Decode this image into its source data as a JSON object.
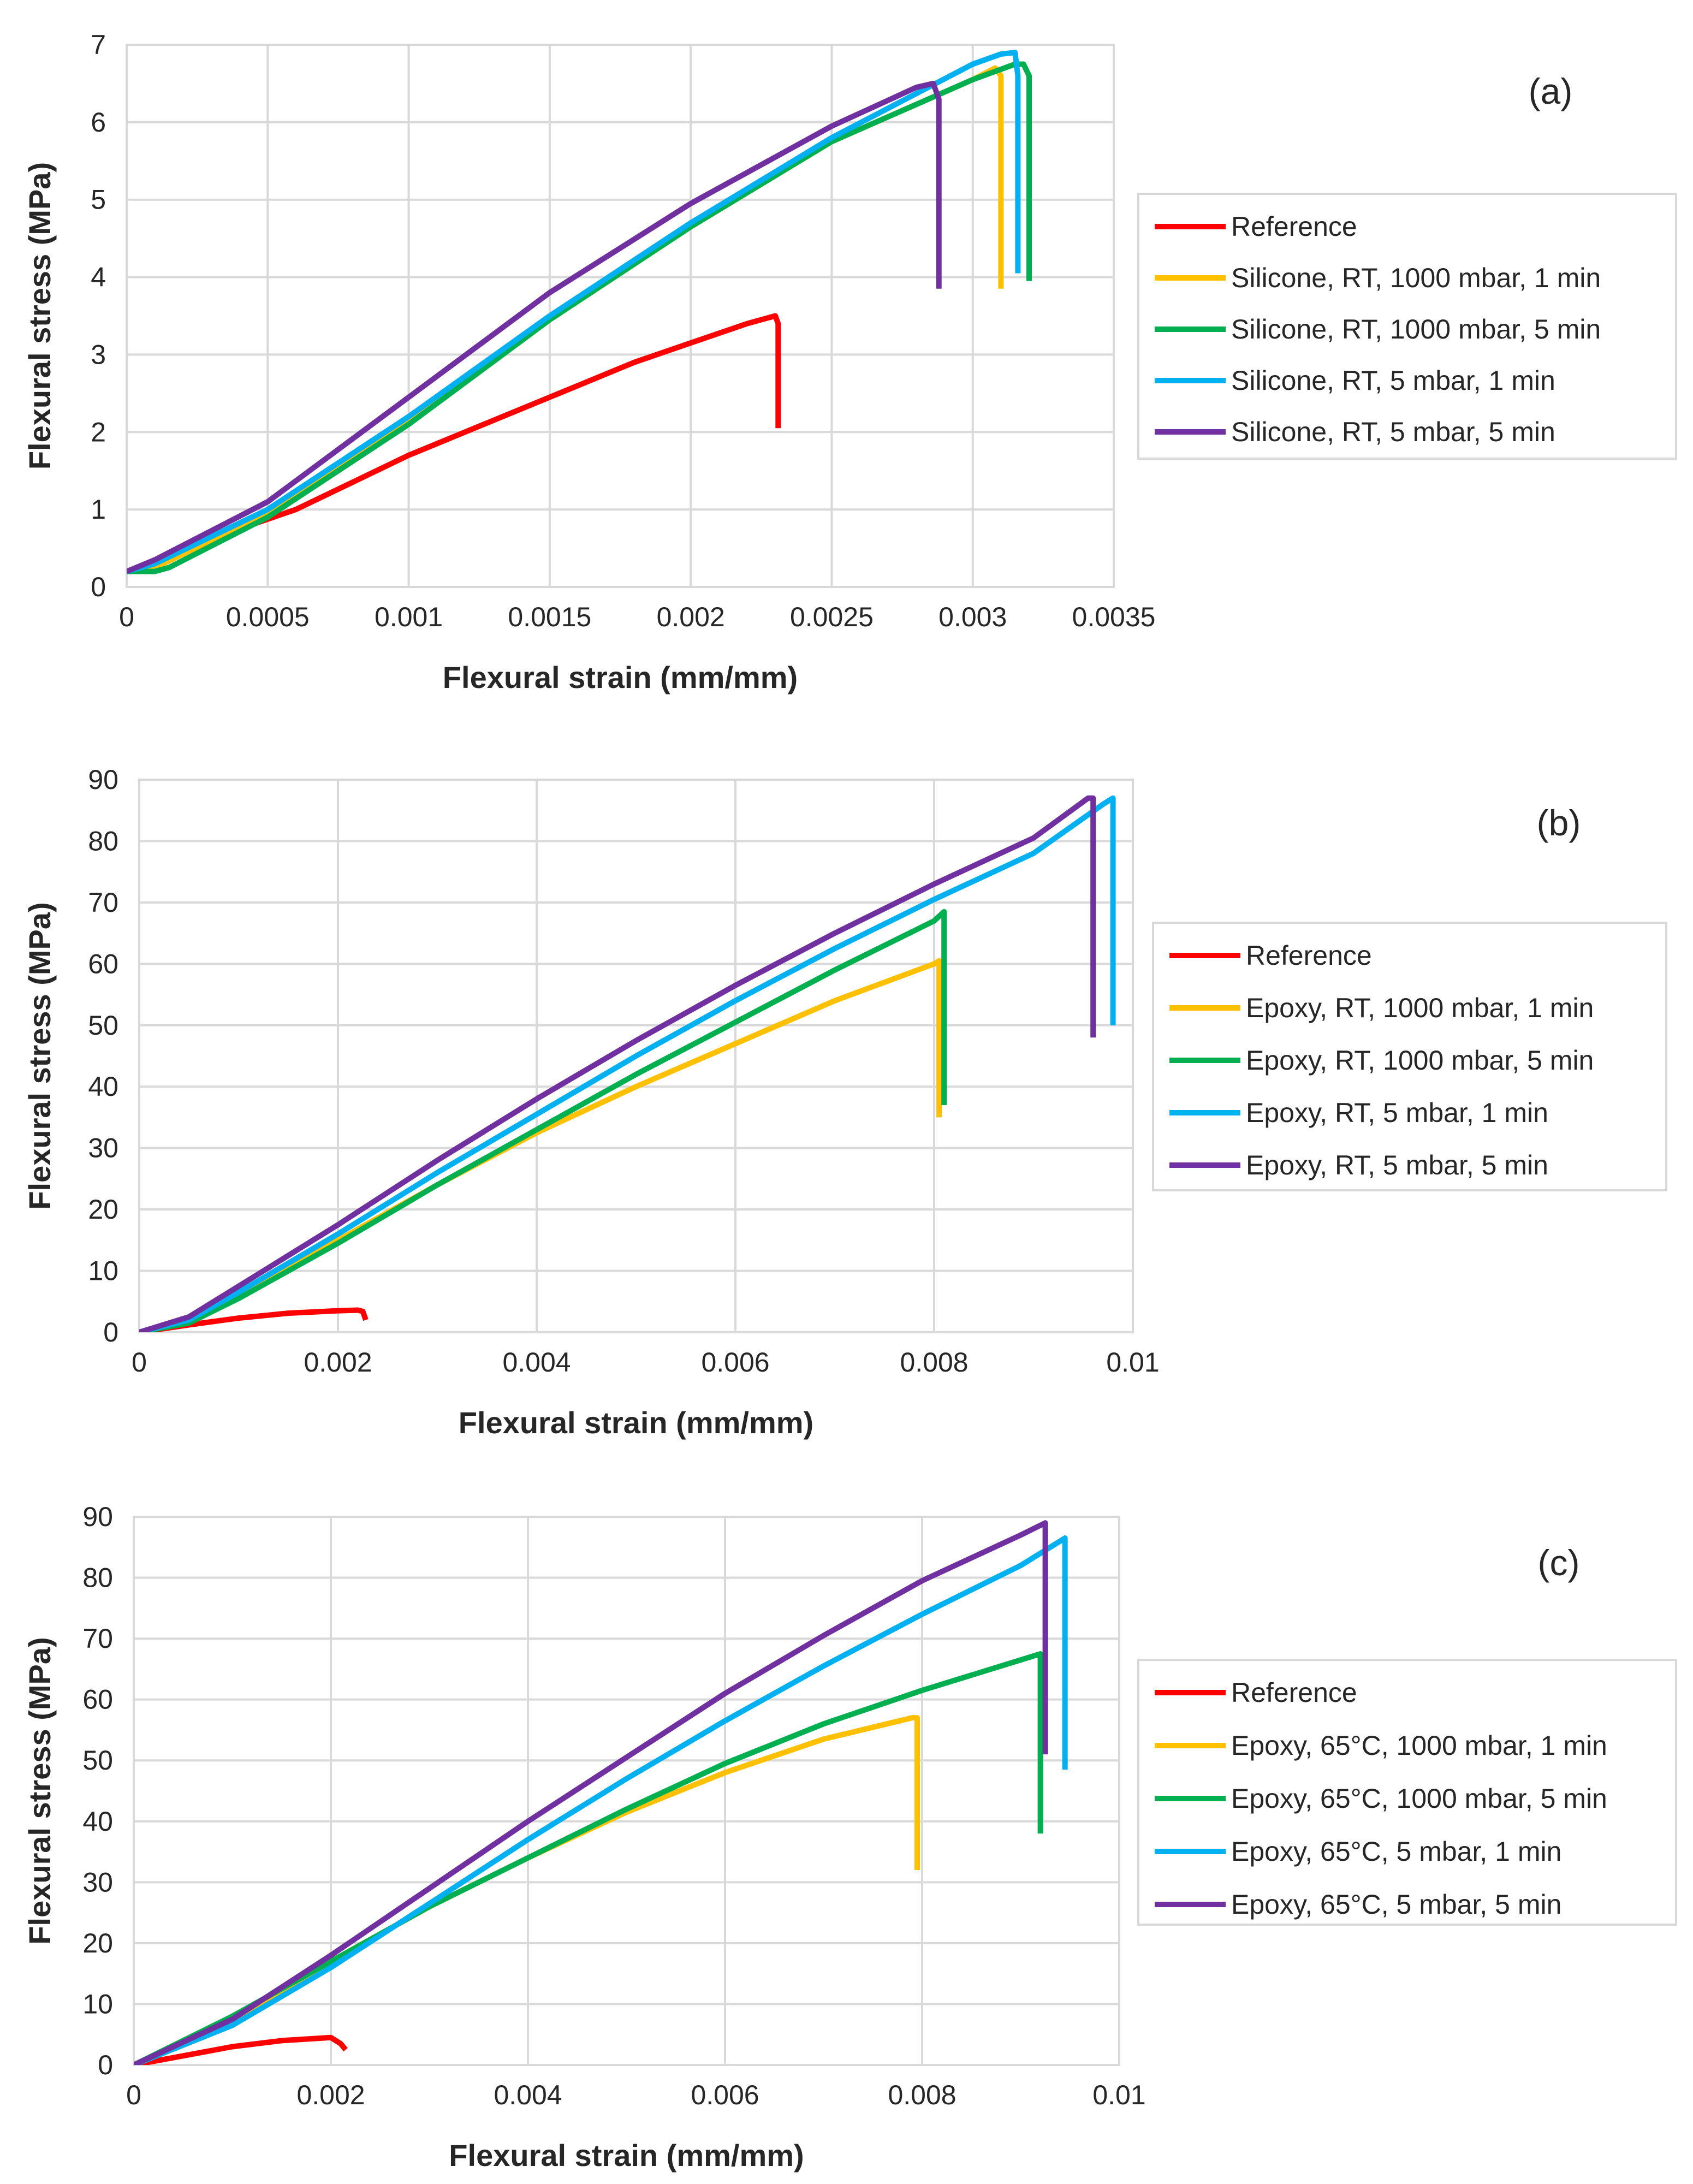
{
  "chart_data": [
    {
      "type": "line",
      "panel_label": "(a)",
      "xlabel": "Flexural strain (mm/mm)",
      "ylabel": "Flexural stress (MPa)",
      "xlim": [
        0,
        0.0035
      ],
      "ylim": [
        0,
        7
      ],
      "grid": true,
      "legend_position": "right",
      "xticks": [
        "0",
        "0.0005",
        "0.001",
        "0.0015",
        "0.002",
        "0.0025",
        "0.003",
        "0.0035"
      ],
      "yticks": [
        "0",
        "1",
        "2",
        "3",
        "4",
        "5",
        "6",
        "7"
      ],
      "series": [
        {
          "name": "Reference",
          "color": "#ff0000",
          "x": [
            0,
            0.0001,
            0.0002,
            0.0004,
            0.0006,
            0.0008,
            0.001,
            0.0012,
            0.0014,
            0.0016,
            0.0018,
            0.002,
            0.0022,
            0.0023,
            0.00231,
            0.00231
          ],
          "y": [
            0.2,
            0.3,
            0.45,
            0.75,
            1.0,
            1.35,
            1.7,
            2.0,
            2.3,
            2.6,
            2.9,
            3.15,
            3.4,
            3.5,
            3.4,
            2.05
          ]
        },
        {
          "name": "Silicone, RT, 1000 mbar, 1 min",
          "color": "#ffc000",
          "x": [
            0,
            0.0001,
            0.0005,
            0.001,
            0.0015,
            0.002,
            0.0025,
            0.003,
            0.00308,
            0.0031,
            0.0031
          ],
          "y": [
            0.2,
            0.25,
            0.95,
            2.15,
            3.45,
            4.65,
            5.75,
            6.55,
            6.7,
            6.6,
            3.85
          ]
        },
        {
          "name": "Silicone, RT, 1000 mbar, 5 min",
          "color": "#00b050",
          "x": [
            0,
            0.0001,
            0.00015,
            0.0005,
            0.001,
            0.0015,
            0.002,
            0.0025,
            0.003,
            0.00315,
            0.00318,
            0.0032,
            0.0032
          ],
          "y": [
            0.2,
            0.2,
            0.25,
            0.9,
            2.1,
            3.45,
            4.65,
            5.75,
            6.55,
            6.75,
            6.75,
            6.6,
            3.95
          ]
        },
        {
          "name": "Silicone, RT, 5 mbar, 1 min",
          "color": "#00b0f0",
          "x": [
            0,
            0.0001,
            0.0005,
            0.001,
            0.0015,
            0.002,
            0.0025,
            0.003,
            0.0031,
            0.00315,
            0.00316,
            0.00316
          ],
          "y": [
            0.2,
            0.3,
            1.0,
            2.2,
            3.5,
            4.7,
            5.8,
            6.75,
            6.88,
            6.9,
            6.6,
            4.05
          ]
        },
        {
          "name": "Silicone, RT, 5 mbar, 5 min",
          "color": "#7030a0",
          "x": [
            0,
            0.0001,
            0.0005,
            0.001,
            0.0015,
            0.002,
            0.0025,
            0.0028,
            0.00286,
            0.00288,
            0.00288
          ],
          "y": [
            0.2,
            0.35,
            1.1,
            2.45,
            3.8,
            4.95,
            5.95,
            6.45,
            6.5,
            6.3,
            3.85
          ]
        }
      ]
    },
    {
      "type": "line",
      "panel_label": "(b)",
      "xlabel": "Flexural strain (mm/mm)",
      "ylabel": "Flexural stress (MPa)",
      "xlim": [
        0,
        0.01
      ],
      "ylim": [
        0,
        90
      ],
      "grid": true,
      "legend_position": "right",
      "xticks": [
        "0",
        "0.002",
        "0.004",
        "0.006",
        "0.008",
        "0.01"
      ],
      "yticks": [
        "0",
        "10",
        "20",
        "30",
        "40",
        "50",
        "60",
        "70",
        "80",
        "90"
      ],
      "series": [
        {
          "name": "Reference",
          "color": "#ff0000",
          "x": [
            0,
            0.0005,
            0.001,
            0.0015,
            0.002,
            0.0022,
            0.00225,
            0.00228
          ],
          "y": [
            0,
            1.2,
            2.3,
            3.1,
            3.5,
            3.6,
            3.4,
            2.0
          ]
        },
        {
          "name": "Epoxy, RT, 1000 mbar, 1 min",
          "color": "#ffc000",
          "x": [
            0,
            0.0005,
            0.001,
            0.002,
            0.003,
            0.004,
            0.005,
            0.006,
            0.007,
            0.008,
            0.00805,
            0.00805
          ],
          "y": [
            0,
            2,
            6,
            15,
            24,
            32.5,
            40,
            47,
            54,
            60,
            60.5,
            35
          ]
        },
        {
          "name": "Epoxy, RT, 1000 mbar, 5 min",
          "color": "#00b050",
          "x": [
            0,
            0.0005,
            0.001,
            0.002,
            0.003,
            0.004,
            0.005,
            0.006,
            0.007,
            0.008,
            0.0081,
            0.0081
          ],
          "y": [
            0,
            1.5,
            5.5,
            14.5,
            24,
            33,
            42,
            50.5,
            59,
            67,
            68.5,
            37
          ]
        },
        {
          "name": "Epoxy, RT, 5 mbar, 1 min",
          "color": "#00b0f0",
          "x": [
            0,
            0.0005,
            0.001,
            0.002,
            0.003,
            0.004,
            0.005,
            0.006,
            0.007,
            0.008,
            0.009,
            0.0097,
            0.0098,
            0.0098
          ],
          "y": [
            0,
            2,
            6.5,
            16,
            26,
            35.5,
            45,
            54,
            62.5,
            70.5,
            78,
            86,
            87,
            50
          ]
        },
        {
          "name": "Epoxy, RT, 5 mbar, 5 min",
          "color": "#7030a0",
          "x": [
            0,
            0.0005,
            0.001,
            0.002,
            0.003,
            0.004,
            0.005,
            0.006,
            0.007,
            0.008,
            0.009,
            0.00955,
            0.0096,
            0.0096
          ],
          "y": [
            0,
            2.5,
            7.5,
            17.5,
            28,
            38,
            47.5,
            56.5,
            65,
            73,
            80.5,
            87,
            87,
            48
          ]
        }
      ]
    },
    {
      "type": "line",
      "panel_label": "(c)",
      "xlabel": "Flexural strain (mm/mm)",
      "ylabel": "Flexural stress (MPa)",
      "xlim": [
        0,
        0.01
      ],
      "ylim": [
        0,
        90
      ],
      "grid": true,
      "legend_position": "right",
      "xticks": [
        "0",
        "0.002",
        "0.004",
        "0.006",
        "0.008",
        "0.01"
      ],
      "yticks": [
        "0",
        "10",
        "20",
        "30",
        "40",
        "50",
        "60",
        "70",
        "80",
        "90"
      ],
      "series": [
        {
          "name": "Reference",
          "color": "#ff0000",
          "x": [
            0,
            0.0005,
            0.001,
            0.0015,
            0.002,
            0.0021,
            0.00215
          ],
          "y": [
            0,
            1.5,
            3.0,
            4.0,
            4.5,
            3.5,
            2.5
          ]
        },
        {
          "name": "Epoxy, 65°C, 1000 mbar, 1 min",
          "color": "#ffc000",
          "x": [
            0,
            0.001,
            0.002,
            0.003,
            0.004,
            0.005,
            0.006,
            0.007,
            0.0079,
            0.00795,
            0.00795
          ],
          "y": [
            0,
            7.5,
            17,
            26,
            34,
            41.5,
            48,
            53.5,
            57,
            57,
            32
          ]
        },
        {
          "name": "Epoxy, 65°C, 1000 mbar, 5 min",
          "color": "#00b050",
          "x": [
            0,
            0.001,
            0.002,
            0.003,
            0.004,
            0.005,
            0.006,
            0.007,
            0.008,
            0.009,
            0.0092,
            0.0092
          ],
          "y": [
            0,
            8,
            17,
            26,
            34,
            42,
            49.5,
            56,
            61.5,
            66.5,
            67.5,
            38
          ]
        },
        {
          "name": "Epoxy, 65°C, 5 mbar, 1 min",
          "color": "#00b0f0",
          "x": [
            0,
            0.001,
            0.002,
            0.003,
            0.004,
            0.005,
            0.006,
            0.007,
            0.008,
            0.009,
            0.0094,
            0.00945,
            0.00945
          ],
          "y": [
            0,
            6.5,
            16,
            26.5,
            37,
            47,
            56.5,
            65.5,
            74,
            82,
            86,
            86.5,
            48.5
          ]
        },
        {
          "name": "Epoxy, 65°C, 5 mbar, 5 min",
          "color": "#7030a0",
          "x": [
            0,
            0.001,
            0.002,
            0.003,
            0.004,
            0.005,
            0.006,
            0.007,
            0.008,
            0.009,
            0.00925,
            0.00925
          ],
          "y": [
            0,
            7.5,
            18,
            29,
            40,
            50.5,
            61,
            70.5,
            79.5,
            87,
            89,
            51
          ]
        }
      ]
    }
  ]
}
